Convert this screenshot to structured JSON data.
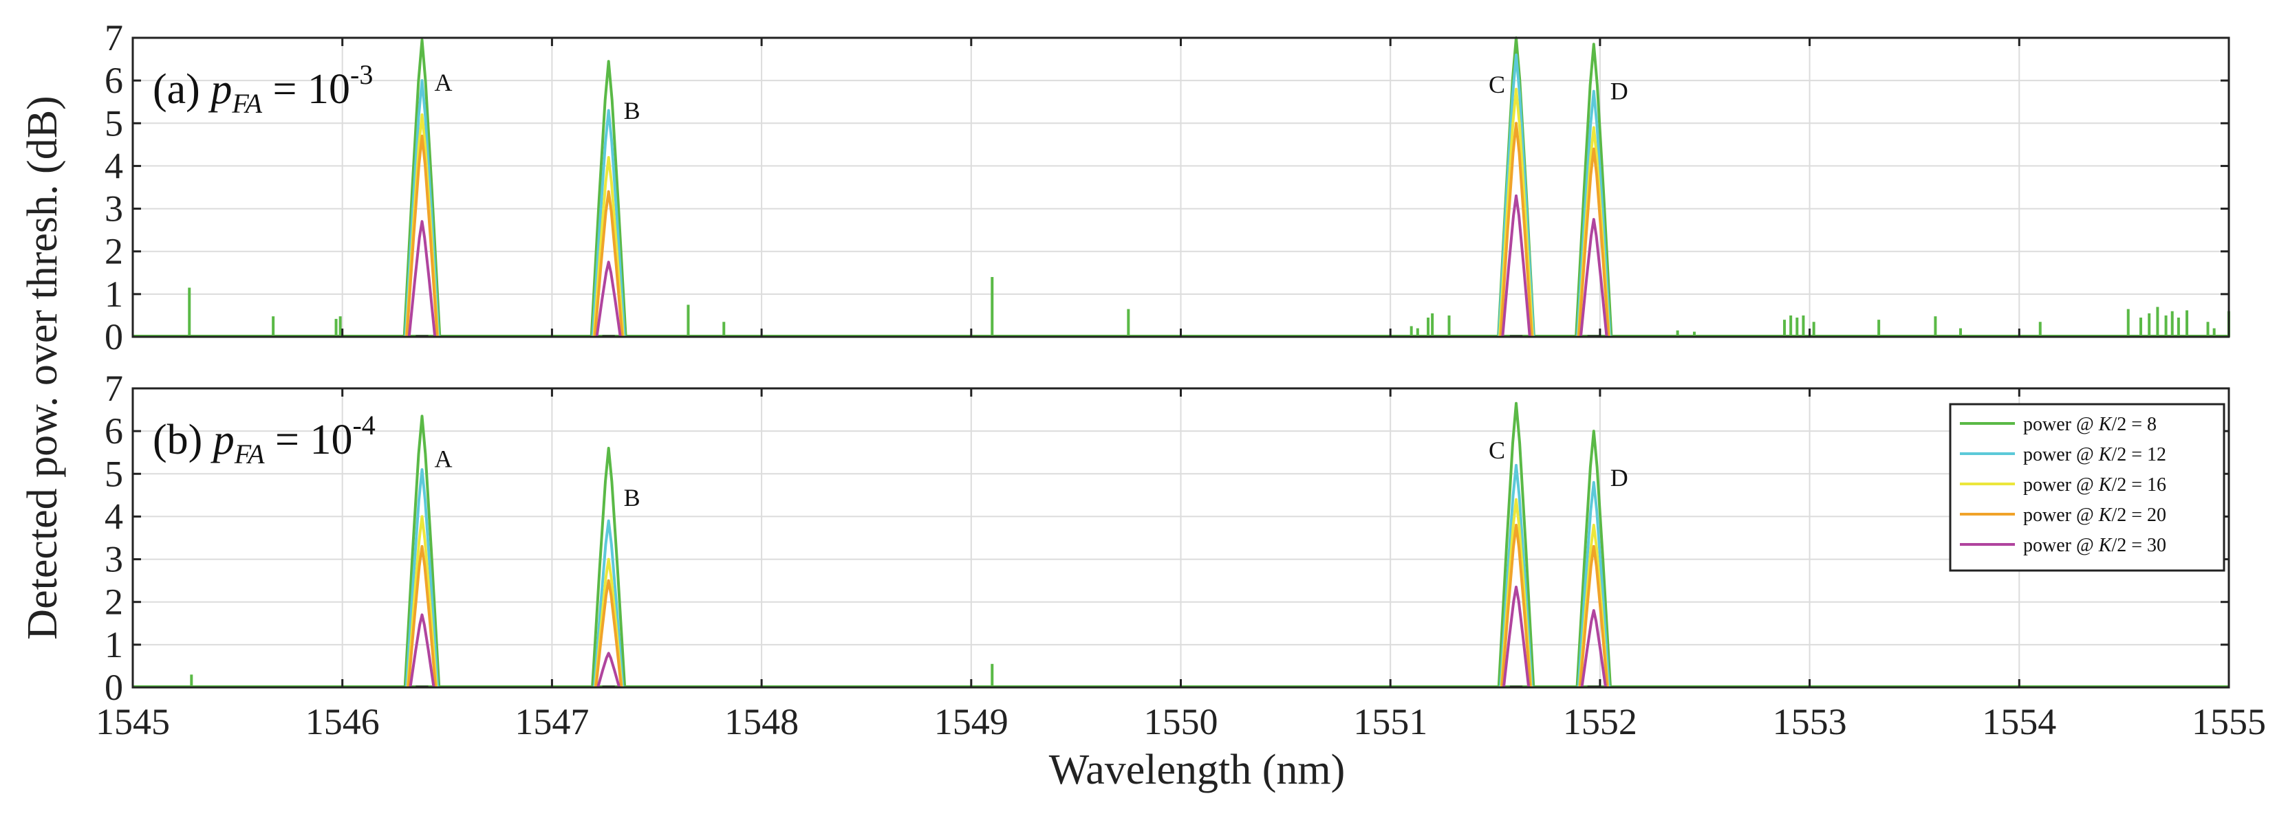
{
  "chart_data": {
    "type": "line",
    "xlabel": "Wavelength (nm)",
    "ylabel": "Detected pow. over thresh. (dB)",
    "xlim": [
      1545,
      1555
    ],
    "ylim": [
      0,
      7
    ],
    "xticks": [
      "1545",
      "1546",
      "1547",
      "1548",
      "1549",
      "1550",
      "1551",
      "1552",
      "1553",
      "1554",
      "1555"
    ],
    "yticks": [
      "0",
      "1",
      "2",
      "3",
      "4",
      "5",
      "6",
      "7"
    ],
    "grid": true,
    "legend": {
      "placement": "right, lower panel",
      "entries": [
        {
          "prefix": "power @ ",
          "k": "K",
          "suffix": "/2 = 8",
          "color": "#5ab946"
        },
        {
          "prefix": "power @ ",
          "k": "K",
          "suffix": "/2 = 12",
          "color": "#5cc9d9"
        },
        {
          "prefix": "power @ ",
          "k": "K",
          "suffix": "/2 = 16",
          "color": "#ece63c"
        },
        {
          "prefix": "power @ ",
          "k": "K",
          "suffix": "/2 = 20",
          "color": "#f0a32a"
        },
        {
          "prefix": "power @ ",
          "k": "K",
          "suffix": "/2 = 30",
          "color": "#b0449e"
        }
      ]
    },
    "series_names": [
      "power @ K/2 = 8",
      "power @ K/2 = 12",
      "power @ K/2 = 16",
      "power @ K/2 = 20",
      "power @ K/2 = 30"
    ],
    "series_colors": [
      "#5ab946",
      "#5cc9d9",
      "#ece63c",
      "#f0a32a",
      "#b0449e"
    ],
    "panels": [
      {
        "id": "a",
        "label_prefix": "(a) ",
        "label_p": "p",
        "label_sub": "FA",
        "label_eq": " = 10",
        "label_exp": "-3",
        "peaks": [
          {
            "label": "A",
            "center": 1546.38,
            "halfwidth": 0.085,
            "heights": [
              6.95,
              6.0,
              5.2,
              4.7,
              2.7
            ]
          },
          {
            "label": "B",
            "center": 1547.27,
            "halfwidth": 0.085,
            "heights": [
              6.45,
              5.3,
              4.2,
              3.4,
              1.75
            ]
          },
          {
            "label": "C",
            "center": 1551.6,
            "halfwidth": 0.085,
            "heights": [
              7.0,
              6.6,
              5.8,
              5.0,
              3.3
            ]
          },
          {
            "label": "D",
            "center": 1551.97,
            "halfwidth": 0.085,
            "heights": [
              6.85,
              5.75,
              4.9,
              4.4,
              2.75
            ]
          }
        ],
        "spikes": [
          [
            1545.27,
            1.15
          ],
          [
            1545.67,
            0.48
          ],
          [
            1545.97,
            0.42
          ],
          [
            1545.99,
            0.48
          ],
          [
            1547.65,
            0.75
          ],
          [
            1547.82,
            0.35
          ],
          [
            1549.1,
            1.4
          ],
          [
            1549.75,
            0.65
          ],
          [
            1551.1,
            0.25
          ],
          [
            1551.13,
            0.2
          ],
          [
            1551.18,
            0.45
          ],
          [
            1551.2,
            0.55
          ],
          [
            1551.28,
            0.5
          ],
          [
            1552.37,
            0.15
          ],
          [
            1552.45,
            0.12
          ],
          [
            1552.88,
            0.4
          ],
          [
            1552.91,
            0.5
          ],
          [
            1552.94,
            0.45
          ],
          [
            1552.97,
            0.5
          ],
          [
            1553.02,
            0.35
          ],
          [
            1553.33,
            0.4
          ],
          [
            1553.6,
            0.48
          ],
          [
            1553.72,
            0.2
          ],
          [
            1554.1,
            0.35
          ],
          [
            1554.52,
            0.65
          ],
          [
            1554.58,
            0.45
          ],
          [
            1554.62,
            0.55
          ],
          [
            1554.66,
            0.7
          ],
          [
            1554.7,
            0.5
          ],
          [
            1554.73,
            0.6
          ],
          [
            1554.76,
            0.45
          ],
          [
            1554.8,
            0.62
          ],
          [
            1554.9,
            0.35
          ],
          [
            1554.93,
            0.2
          ],
          [
            1555.0,
            0.6
          ]
        ]
      },
      {
        "id": "b",
        "label_prefix": "(b) ",
        "label_p": "p",
        "label_sub": "FA",
        "label_eq": " = 10",
        "label_exp": "-4",
        "peaks": [
          {
            "label": "A",
            "center": 1546.38,
            "halfwidth": 0.085,
            "heights": [
              6.35,
              5.1,
              4.0,
              3.3,
              1.7
            ]
          },
          {
            "label": "B",
            "center": 1547.27,
            "halfwidth": 0.085,
            "heights": [
              5.6,
              3.9,
              3.0,
              2.5,
              0.8
            ]
          },
          {
            "label": "C",
            "center": 1551.6,
            "halfwidth": 0.085,
            "heights": [
              6.65,
              5.2,
              4.4,
              3.8,
              2.35
            ]
          },
          {
            "label": "D",
            "center": 1551.97,
            "halfwidth": 0.085,
            "heights": [
              6.0,
              4.8,
              3.8,
              3.3,
              1.8
            ]
          }
        ],
        "spikes": [
          [
            1545.28,
            0.3
          ],
          [
            1549.1,
            0.55
          ]
        ]
      }
    ]
  }
}
